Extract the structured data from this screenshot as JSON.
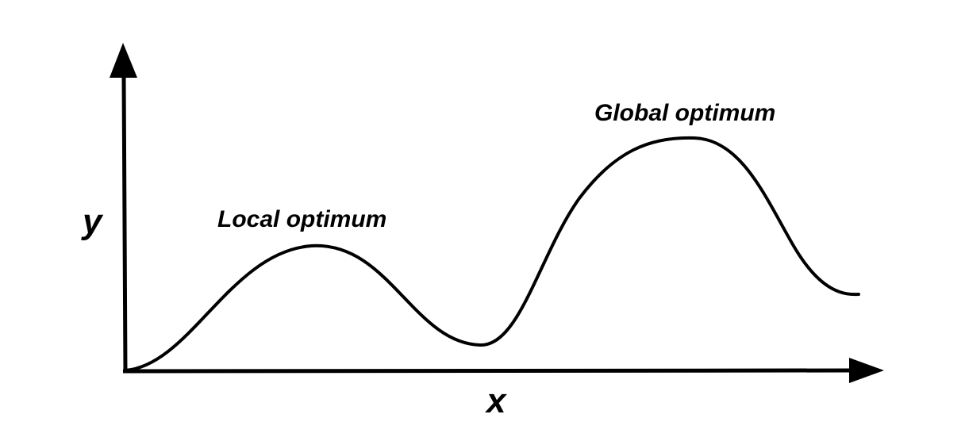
{
  "diagram": {
    "axes": {
      "x_label": "x",
      "y_label": "y"
    },
    "annotations": {
      "local_optimum": "Local optimum",
      "global_optimum": "Global optimum"
    },
    "colors": {
      "stroke": "#000000",
      "background": "#ffffff"
    }
  }
}
